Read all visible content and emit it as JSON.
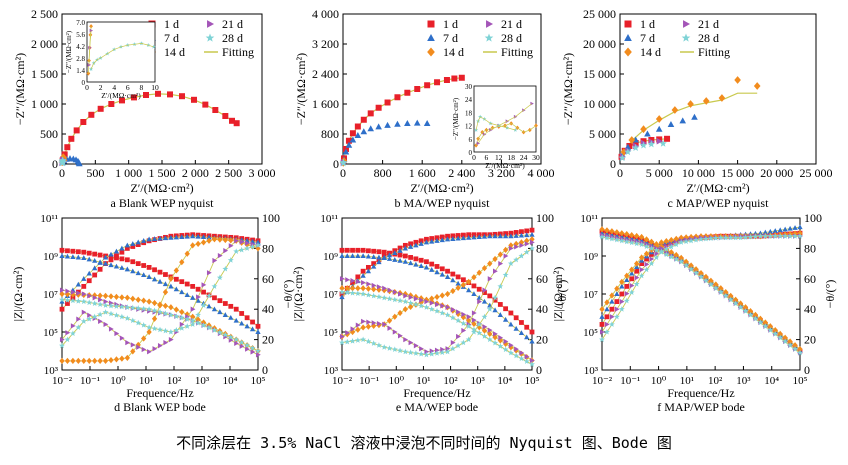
{
  "figure": {
    "caption": "不同涂层在 3.5% NaCl 溶液中浸泡不同时间的 Nyquist 图、Bode 图",
    "colors": {
      "1 d": "#e8202a",
      "7 d": "#2e6fc9",
      "14 d": "#f28c1e",
      "21 d": "#a455b8",
      "28 d": "#7fd3d6",
      "Fitting": "#c9c94d"
    }
  },
  "chart_data": [
    {
      "type": "scatter",
      "panel": "a",
      "title": "a  Blank WEP nyquist",
      "xlabel": "Z′/(MΩ·cm²)",
      "ylabel": "−Z″/(MΩ·cm²)",
      "xlim": [
        0,
        3000
      ],
      "ylim": [
        0,
        2500
      ],
      "xticks": [
        "0",
        "500",
        "1 000",
        "1 500",
        "2 000",
        "2 500",
        "3 000"
      ],
      "yticks": [
        "0",
        "500",
        "1 000",
        "1 500",
        "2 000",
        "2 500"
      ],
      "legend": {
        "position": "top-right",
        "entries": [
          "1 d",
          "7 d",
          "14 d",
          "21 d",
          "28 d",
          "Fitting"
        ]
      },
      "series": [
        {
          "name": "1 d",
          "marker": "square",
          "x": [
            10,
            40,
            80,
            140,
            220,
            320,
            440,
            580,
            740,
            900,
            1080,
            1260,
            1440,
            1620,
            1800,
            1980,
            2150,
            2300,
            2450,
            2550,
            2620
          ],
          "y": [
            60,
            160,
            280,
            420,
            560,
            700,
            820,
            920,
            1000,
            1060,
            1110,
            1150,
            1170,
            1160,
            1130,
            1070,
            990,
            900,
            800,
            720,
            680
          ]
        },
        {
          "name": "7 d",
          "marker": "triangle",
          "x": [
            5,
            30,
            70,
            120,
            170,
            210,
            240,
            255,
            260
          ],
          "y": [
            20,
            50,
            80,
            90,
            85,
            70,
            45,
            20,
            5
          ]
        },
        {
          "name": "14 d",
          "marker": "diamond",
          "x": [
            3,
            8,
            14,
            20,
            26,
            32
          ],
          "y": [
            30,
            65,
            95,
            115,
            100,
            60
          ]
        },
        {
          "name": "21 d",
          "marker": "triangle-right",
          "x": [
            2,
            6,
            10,
            15,
            20
          ],
          "y": [
            20,
            50,
            75,
            65,
            35
          ]
        },
        {
          "name": "28 d",
          "marker": "star",
          "x": [
            2,
            5,
            9,
            13,
            17
          ],
          "y": [
            15,
            40,
            60,
            55,
            30
          ]
        }
      ],
      "inset": {
        "xlim": [
          0,
          10
        ],
        "ylim": [
          0,
          7
        ],
        "xticks": [
          "0",
          "2",
          "4",
          "6",
          "8",
          "10"
        ],
        "yticks": [
          "0",
          "1.4",
          "2.8",
          "4.2",
          "5.6",
          "7.0"
        ],
        "xlabel": "Z′/(MΩ·cm²)",
        "ylabel": "−Z″/(MΩ·cm²)",
        "series": [
          {
            "name": "14 d",
            "x": [
              0.2,
              0.3,
              0.4,
              0.5,
              0.6
            ],
            "y": [
              1.0,
              2.5,
              4.0,
              5.5,
              6.5
            ]
          },
          {
            "name": "21 d",
            "x": [
              0.3,
              0.4,
              0.6
            ],
            "y": [
              2.0,
              4.0,
              6.0
            ]
          },
          {
            "name": "28 d",
            "x": [
              0.6,
              1,
              1.5,
              2,
              3,
              4,
              5,
              6,
              7,
              8,
              9,
              9.8
            ],
            "y": [
              1.5,
              2.2,
              2.6,
              2.8,
              3.3,
              3.8,
              4.1,
              4.3,
              4.4,
              4.5,
              4.3,
              4.1
            ]
          }
        ]
      }
    },
    {
      "type": "scatter",
      "panel": "b",
      "title": "b  MA/WEP nyquist",
      "xlabel": "Z′/(MΩ·cm²)",
      "ylabel": "−Z″/(MΩ·cm²)",
      "xlim": [
        0,
        4000
      ],
      "ylim": [
        0,
        4000
      ],
      "xticks": [
        "0",
        "800",
        "1 600",
        "2 400",
        "3 200",
        "4 000"
      ],
      "yticks": [
        "0",
        "800",
        "1 600",
        "2 400",
        "3 200",
        "4 000"
      ],
      "legend": {
        "position": "top-right",
        "entries": [
          "1 d",
          "7 d",
          "14 d",
          "21 d",
          "28 d",
          "Fitting"
        ]
      },
      "series": [
        {
          "name": "1 d",
          "marker": "square",
          "x": [
            20,
            60,
            120,
            200,
            300,
            420,
            560,
            720,
            900,
            1100,
            1300,
            1500,
            1700,
            1900,
            2100,
            2250,
            2400
          ],
          "y": [
            150,
            400,
            620,
            820,
            1000,
            1180,
            1350,
            1500,
            1640,
            1780,
            1900,
            2000,
            2100,
            2180,
            2240,
            2280,
            2300
          ]
        },
        {
          "name": "7 d",
          "marker": "triangle",
          "x": [
            20,
            60,
            120,
            200,
            300,
            420,
            560,
            720,
            900,
            1100,
            1300,
            1500,
            1700
          ],
          "y": [
            120,
            320,
            500,
            640,
            760,
            860,
            940,
            990,
            1030,
            1060,
            1080,
            1090,
            1080
          ]
        },
        {
          "name": "14 d",
          "marker": "diamond",
          "x": [
            5,
            10,
            20
          ],
          "y": [
            30,
            60,
            80
          ]
        },
        {
          "name": "21 d",
          "marker": "triangle-right",
          "x": [
            5,
            10
          ],
          "y": [
            25,
            50
          ]
        },
        {
          "name": "28 d",
          "marker": "star",
          "x": [
            5,
            10
          ],
          "y": [
            20,
            40
          ]
        }
      ],
      "inset": {
        "xlim": [
          0,
          30
        ],
        "ylim": [
          0,
          30
        ],
        "xticks": [
          "0",
          "6",
          "12",
          "18",
          "24",
          "30"
        ],
        "yticks": [
          "0",
          "6",
          "12",
          "18",
          "24",
          "30"
        ],
        "xlabel": "Z′/(MΩ·cm²)",
        "ylabel": "−Z″/(MΩ·cm²)",
        "series": [
          {
            "name": "14 d",
            "x": [
              1,
              2,
              4,
              6,
              9,
              12,
              15,
              18,
              21,
              24,
              27,
              30
            ],
            "y": [
              3,
              6,
              9,
              10,
              11,
              11.5,
              12,
              13,
              11,
              9,
              10,
              12
            ]
          },
          {
            "name": "21 d",
            "x": [
              2,
              5,
              8,
              12,
              16,
              20,
              24,
              28
            ],
            "y": [
              4,
              8,
              10,
              12,
              14,
              16,
              19,
              22
            ]
          },
          {
            "name": "28 d",
            "x": [
              1,
              2,
              3,
              5,
              8,
              12,
              16,
              20
            ],
            "y": [
              10,
              14,
              16,
              15,
              13,
              12,
              11,
              10
            ]
          }
        ]
      }
    },
    {
      "type": "scatter",
      "panel": "c",
      "title": "c  MAP/WEP nyquist",
      "xlabel": "Z′/(MΩ·cm²)",
      "ylabel": "−Z″/(MΩ·cm²)",
      "xlim": [
        0,
        25000
      ],
      "ylim": [
        0,
        25000
      ],
      "xticks": [
        "0",
        "5 000",
        "10 000",
        "15 000",
        "20 000",
        "25 000"
      ],
      "yticks": [
        "0",
        "5 000",
        "10 000",
        "15 000",
        "20 000",
        "25 000"
      ],
      "legend": {
        "position": "top-left",
        "entries": [
          "1 d",
          "7 d",
          "14 d",
          "21 d",
          "28 d",
          "Fitting"
        ]
      },
      "series": [
        {
          "name": "1 d",
          "marker": "square",
          "x": [
            200,
            600,
            1200,
            2000,
            3000,
            4000,
            5000,
            6000
          ],
          "y": [
            1200,
            2200,
            3000,
            3500,
            3800,
            4000,
            4100,
            4200
          ]
        },
        {
          "name": "7 d",
          "marker": "triangle",
          "x": [
            300,
            1000,
            2000,
            3500,
            5000,
            6500,
            8000,
            9500
          ],
          "y": [
            1500,
            2800,
            4000,
            5000,
            5800,
            6600,
            7200,
            7800
          ]
        },
        {
          "name": "14 d",
          "marker": "diamond",
          "x": [
            500,
            1500,
            3000,
            5000,
            7000,
            9000,
            11000,
            13000,
            15000,
            17500
          ],
          "y": [
            2000,
            4000,
            5800,
            7500,
            9000,
            10000,
            10500,
            11000,
            14000,
            13000
          ]
        },
        {
          "name": "21 d",
          "marker": "triangle-right",
          "x": [
            300,
            1000,
            2000,
            3000,
            4000,
            5000
          ],
          "y": [
            1200,
            2200,
            3000,
            3500,
            3700,
            3800
          ]
        },
        {
          "name": "28 d",
          "marker": "star",
          "x": [
            300,
            1000,
            2000,
            3000,
            4000,
            5500
          ],
          "y": [
            1000,
            2000,
            2700,
            3100,
            3300,
            3400
          ]
        }
      ]
    },
    {
      "type": "line",
      "panel": "d",
      "title": "d  Blank WEP bode",
      "xlabel": "Frequence/Hz",
      "ylabel": "|Z|/(Ω·cm²)",
      "y2label": "−θ/(°)",
      "xscale": "log",
      "xlim": [
        0.01,
        100000
      ],
      "ylim": [
        1000,
        100000000000
      ],
      "y2lim": [
        0,
        100
      ],
      "xticks": [
        "10⁻²",
        "10⁻¹",
        "10⁰",
        "10¹",
        "10²",
        "10³",
        "10⁴",
        "10⁵"
      ],
      "yticks": [
        "10³",
        "10⁵",
        "10⁷",
        "10⁹",
        "10¹¹"
      ],
      "y2ticks": [
        "0",
        "20",
        "40",
        "60",
        "80",
        "100"
      ],
      "logz": {
        "1 d": [
          9.3,
          9.2,
          9.0,
          8.8,
          8.4,
          7.9,
          7.4,
          6.8,
          6.2,
          5.3
        ],
        "7 d": [
          9.0,
          8.9,
          8.6,
          8.3,
          7.9,
          7.4,
          6.8,
          6.2,
          5.6,
          5.0
        ],
        "14 d": [
          7.0,
          6.95,
          6.9,
          6.8,
          6.6,
          6.3,
          5.8,
          5.2,
          4.6,
          4.0
        ],
        "21 d": [
          7.2,
          7.0,
          6.6,
          6.3,
          6.1,
          5.9,
          5.6,
          5.1,
          4.4,
          3.8
        ],
        "28 d": [
          6.7,
          6.6,
          6.4,
          6.3,
          6.2,
          5.9,
          5.6,
          5.1,
          4.6,
          4.0
        ]
      },
      "phase": {
        "1 d": [
          40,
          55,
          70,
          80,
          85,
          88,
          89,
          88,
          87,
          85
        ],
        "7 d": [
          45,
          60,
          74,
          82,
          86,
          87,
          88,
          87,
          86,
          84
        ],
        "14 d": [
          6,
          6,
          6,
          8,
          25,
          60,
          82,
          86,
          85,
          80
        ],
        "21 d": [
          20,
          38,
          30,
          18,
          12,
          20,
          40,
          72,
          85,
          82
        ],
        "28 d": [
          16,
          32,
          38,
          34,
          28,
          25,
          30,
          55,
          78,
          82
        ]
      }
    },
    {
      "type": "line",
      "panel": "e",
      "title": "e  MA/WEP bode",
      "xlabel": "Frequence/Hz",
      "ylabel": "|Z|/(Ω·cm²)",
      "y2label": "−θ/(°)",
      "xscale": "log",
      "xlim": [
        0.01,
        100000
      ],
      "ylim": [
        1000,
        100000000000
      ],
      "y2lim": [
        0,
        100
      ],
      "xticks": [
        "10⁻²",
        "10⁻¹",
        "10⁰",
        "10¹",
        "10²",
        "10³",
        "10⁴",
        "10⁵"
      ],
      "yticks": [
        "10³",
        "10⁵",
        "10⁷",
        "10⁹",
        "10¹¹"
      ],
      "y2ticks": [
        "0",
        "20",
        "40",
        "60",
        "80",
        "100"
      ],
      "logz": {
        "1 d": [
          9.3,
          9.3,
          9.2,
          9.0,
          8.7,
          8.2,
          7.6,
          6.9,
          6.0,
          5.0
        ],
        "7 d": [
          9.0,
          9.0,
          8.9,
          8.7,
          8.4,
          7.9,
          7.2,
          6.4,
          5.4,
          4.5
        ],
        "14 d": [
          7.3,
          7.3,
          7.2,
          7.0,
          6.7,
          6.3,
          5.6,
          4.9,
          4.2,
          3.5
        ],
        "21 d": [
          7.8,
          7.6,
          7.3,
          6.9,
          6.6,
          6.3,
          5.8,
          5.1,
          4.3,
          3.5
        ],
        "28 d": [
          7.1,
          7.0,
          6.8,
          6.6,
          6.3,
          5.9,
          5.3,
          4.6,
          3.9,
          3.3
        ]
      },
      "phase": {
        "1 d": [
          50,
          65,
          75,
          82,
          86,
          88,
          89,
          89,
          90,
          92
        ],
        "7 d": [
          48,
          62,
          74,
          80,
          84,
          86,
          87,
          88,
          88,
          89
        ],
        "14 d": [
          22,
          28,
          30,
          40,
          46,
          50,
          58,
          70,
          82,
          86
        ],
        "21 d": [
          22,
          32,
          30,
          20,
          12,
          14,
          30,
          60,
          80,
          84
        ],
        "28 d": [
          18,
          20,
          15,
          12,
          10,
          12,
          20,
          40,
          70,
          80
        ]
      }
    },
    {
      "type": "line",
      "panel": "f",
      "title": "f  MAP/WEP bode",
      "xlabel": "Frequence/Hz",
      "ylabel": "|Z|/(Ω·cm²)",
      "y2label": "−θ/(°)",
      "xscale": "log",
      "xlim": [
        0.01,
        100000
      ],
      "ylim": [
        1000,
        100000000000
      ],
      "y2lim": [
        0,
        100
      ],
      "xticks": [
        "10⁻²",
        "10⁻¹",
        "10⁰",
        "10¹",
        "10²",
        "10³",
        "10⁴",
        "10⁵"
      ],
      "yticks": [
        "10³",
        "10⁵",
        "10⁷",
        "10⁹",
        "10¹¹"
      ],
      "y2ticks": [
        "0",
        "20",
        "40",
        "60",
        "80",
        "100"
      ],
      "logz": {
        "1 d": [
          10.3,
          10.1,
          9.9,
          9.4,
          8.8,
          8.0,
          7.2,
          6.4,
          5.6,
          4.8,
          4.0
        ],
        "7 d": [
          10.2,
          10.0,
          9.8,
          9.4,
          8.8,
          8.0,
          7.2,
          6.4,
          5.6,
          4.8,
          4.0
        ],
        "14 d": [
          10.4,
          10.2,
          10.0,
          9.5,
          8.9,
          8.1,
          7.3,
          6.5,
          5.7,
          4.9,
          4.1
        ],
        "21 d": [
          10.1,
          9.9,
          9.7,
          9.3,
          8.7,
          7.9,
          7.1,
          6.3,
          5.5,
          4.7,
          3.9
        ],
        "28 d": [
          10.0,
          9.8,
          9.6,
          9.2,
          8.7,
          7.9,
          7.1,
          6.3,
          5.5,
          4.7,
          3.9
        ]
      },
      "phase": {
        "1 d": [
          30,
          50,
          70,
          82,
          86,
          87,
          88,
          88,
          88,
          89,
          90
        ],
        "7 d": [
          35,
          55,
          72,
          83,
          87,
          88,
          88,
          89,
          90,
          92,
          94
        ],
        "14 d": [
          40,
          58,
          74,
          84,
          87,
          88,
          88,
          88,
          88,
          89,
          90
        ],
        "21 d": [
          25,
          45,
          66,
          80,
          85,
          87,
          87,
          88,
          88,
          88,
          88
        ],
        "28 d": [
          20,
          40,
          62,
          78,
          84,
          86,
          87,
          87,
          88,
          88,
          88
        ]
      }
    }
  ]
}
